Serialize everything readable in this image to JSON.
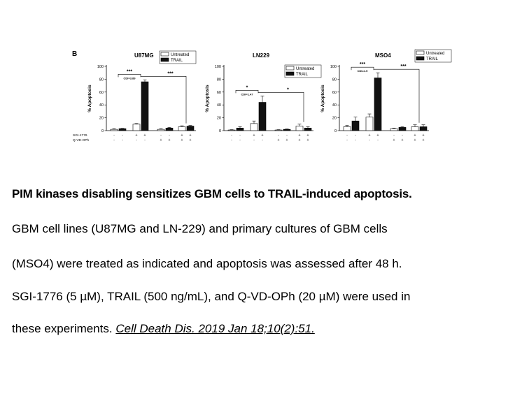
{
  "panel_letter": "B",
  "treatment_rows": [
    "SGI-1776",
    "Q-VD-OPh"
  ],
  "condition_signs": {
    "sgi": [
      "-",
      "-",
      "+",
      "+",
      "-",
      "-",
      "+",
      "+"
    ],
    "qvd": [
      "-",
      "-",
      "-",
      "-",
      "+",
      "+",
      "+",
      "+"
    ]
  },
  "legend_labels": [
    "Untreated",
    "TRAIL"
  ],
  "colors": {
    "untreated": "#ffffff",
    "trail": "#111111",
    "axis": "#000000"
  },
  "chart_data": [
    {
      "type": "bar",
      "title": "U87MG",
      "ylabel": "% Apoptosis",
      "ylim": [
        0,
        100
      ],
      "yticks": [
        0,
        20,
        40,
        60,
        80,
        100
      ],
      "legend_position": "top-right",
      "series": [
        {
          "name": "Untreated",
          "values": [
            2,
            10,
            2,
            6
          ],
          "errors": [
            1,
            1,
            1,
            1.5
          ]
        },
        {
          "name": "TRAIL",
          "values": [
            3,
            76,
            4,
            7
          ],
          "errors": [
            0.5,
            3,
            1,
            1
          ]
        }
      ],
      "annotations": [
        {
          "text": "***",
          "kind": "bracket",
          "from": 0,
          "to": 1
        },
        {
          "text": "CDI=3.89",
          "kind": "label"
        },
        {
          "text": "***",
          "kind": "bracket",
          "from": 1,
          "to": 3
        }
      ]
    },
    {
      "type": "bar",
      "title": "LN229",
      "ylabel": "% Apoptosis",
      "ylim": [
        0,
        100
      ],
      "yticks": [
        0,
        20,
        40,
        60,
        80,
        100
      ],
      "legend_position": "top-right",
      "series": [
        {
          "name": "Untreated",
          "values": [
            1,
            11,
            1,
            7
          ],
          "errors": [
            0.5,
            4,
            0.5,
            3
          ]
        },
        {
          "name": "TRAIL",
          "values": [
            4,
            44,
            2,
            4
          ],
          "errors": [
            2,
            10,
            0.5,
            2
          ]
        }
      ],
      "annotations": [
        {
          "text": "*",
          "kind": "bracket",
          "from": 0,
          "to": 1
        },
        {
          "text": "CDI=1.47",
          "kind": "label"
        },
        {
          "text": "*",
          "kind": "bracket",
          "from": 1,
          "to": 3
        }
      ]
    },
    {
      "type": "bar",
      "title": "MSO4",
      "ylabel": "% Apoptosis",
      "ylim": [
        0,
        100
      ],
      "yticks": [
        0,
        20,
        40,
        60,
        80,
        100
      ],
      "legend_position": "top-right",
      "series": [
        {
          "name": "Untreated",
          "values": [
            6,
            21,
            3,
            6
          ],
          "errors": [
            2,
            5,
            1,
            3
          ]
        },
        {
          "name": "TRAIL",
          "values": [
            15,
            82,
            5,
            6
          ],
          "errors": [
            6,
            8,
            1,
            3
          ]
        }
      ],
      "annotations": [
        {
          "text": "***",
          "kind": "bracket",
          "from": 0,
          "to": 1
        },
        {
          "text": "CDI=1.5",
          "kind": "label"
        },
        {
          "text": "***",
          "kind": "bracket",
          "from": 1,
          "to": 3
        }
      ]
    }
  ],
  "caption": {
    "title": "PIM kinases disabling sensitizes GBM cells to TRAIL-induced apoptosis.",
    "line1": "GBM cell lines (U87MG and LN-229) and primary cultures of GBM cells",
    "line2": "(MSO4) were treated as indicated and apoptosis was assessed after 48 h.",
    "line3": "SGI-1776 (5 µM), TRAIL (500 ng/mL), and Q-VD-OPh (20 µM) were used in",
    "line4_prefix": "these experiments. ",
    "citation": "Cell Death Dis. 2019 Jan 18;10(2):51. "
  }
}
